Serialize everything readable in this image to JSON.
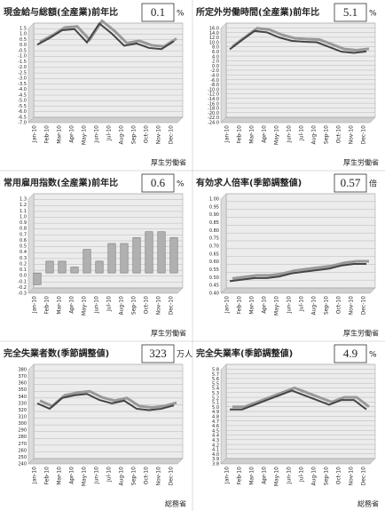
{
  "chart_data": [
    {
      "type": "line",
      "title": "現金給与総額(全産業)前年比",
      "headline": "0.1",
      "unit": "%",
      "source": "厚生労働省",
      "categories": [
        "Jan-10",
        "Feb-10",
        "Mar-10",
        "Apr-10",
        "May-10",
        "Jun-10",
        "Jul-10",
        "Aug-10",
        "Sep-10",
        "Oct-10",
        "Nov-10",
        "Dec-10"
      ],
      "values": [
        -0.2,
        0.4,
        1.1,
        1.2,
        0.0,
        1.7,
        0.8,
        -0.3,
        -0.1,
        -0.5,
        -0.6,
        0.1
      ],
      "color": "#444444",
      "ylim": [
        -7,
        1.5
      ],
      "yticks": [
        {
          "value": -7,
          "label": "-7.0"
        },
        -6.5,
        {
          "value": -6,
          "label": "-6.0"
        },
        -5.5,
        {
          "value": -5,
          "label": "-5.0"
        },
        -4.5,
        {
          "value": -4,
          "label": "-4.0"
        },
        -3.5,
        {
          "value": -3,
          "label": "-3.0"
        },
        -2.5,
        {
          "value": -2,
          "label": "-2.0"
        },
        -1.5,
        {
          "value": -1,
          "label": "-1.0"
        },
        -0.5,
        {
          "value": 0,
          "label": "0.0"
        },
        0.5,
        {
          "value": 1,
          "label": "1.0"
        },
        1.5
      ]
    },
    {
      "type": "line",
      "title": "所定外労働時間(全産業)前年比",
      "headline": "5.1",
      "unit": "%",
      "source": "厚生労働省",
      "categories": [
        "Jan-10",
        "Feb-10",
        "Mar-10",
        "Apr-10",
        "May-10",
        "Jun-10",
        "Jul-10",
        "Aug-10",
        "Sep-10",
        "Oct-10",
        "Nov-10",
        "Dec-10"
      ],
      "values": [
        6.0,
        10.0,
        13.8,
        13.2,
        11.0,
        9.6,
        9.2,
        9.0,
        7.0,
        5.0,
        4.5,
        5.1
      ],
      "color": "#444444",
      "ylim": [
        -24,
        16
      ],
      "yticks": [
        {
          "value": -24,
          "label": "-24.0"
        },
        {
          "value": -22,
          "label": "-22.0"
        },
        {
          "value": -20,
          "label": "-20.0"
        },
        {
          "value": -18,
          "label": "-18.0"
        },
        {
          "value": -16,
          "label": "-16.0"
        },
        {
          "value": -14,
          "label": "-14.0"
        },
        {
          "value": -12,
          "label": "-12.0"
        },
        {
          "value": -10,
          "label": "-10.0"
        },
        {
          "value": -8,
          "label": "-8.0"
        },
        {
          "value": -6,
          "label": "-6.0"
        },
        {
          "value": -4,
          "label": "-4.0"
        },
        {
          "value": -2,
          "label": "-2.0"
        },
        {
          "value": 0,
          "label": "0.0"
        },
        {
          "value": 2,
          "label": "2.0"
        },
        {
          "value": 4,
          "label": "4.0"
        },
        {
          "value": 6,
          "label": "6.0"
        },
        {
          "value": 8,
          "label": "8.0"
        },
        {
          "value": 10,
          "label": "10.0"
        },
        {
          "value": 12,
          "label": "12.0"
        },
        {
          "value": 14,
          "label": "14.0"
        },
        {
          "value": 16,
          "label": "16.0"
        }
      ]
    },
    {
      "type": "bar",
      "title": "常用雇用指数(全産業)前年比",
      "headline": "0.6",
      "unit": "%",
      "source": "厚生労働省",
      "categories": [
        "Jan-10",
        "Feb-10",
        "Mar-10",
        "Apr-10",
        "May-10",
        "Jun-10",
        "Jul-10",
        "Aug-10",
        "Sep-10",
        "Oct-10",
        "Nov-10",
        "Dec-10"
      ],
      "values": [
        -0.2,
        0.2,
        0.2,
        0.1,
        0.4,
        0.2,
        0.5,
        0.5,
        0.6,
        0.7,
        0.7,
        0.6
      ],
      "color": "#b0b0b0",
      "ylim": [
        -0.3,
        1.3
      ],
      "yticks": [
        -0.3,
        -0.2,
        -0.1,
        {
          "value": 0,
          "label": "0.0"
        },
        0.1,
        0.2,
        0.3,
        0.4,
        0.5,
        0.6,
        0.7,
        0.8,
        0.9,
        {
          "value": 1,
          "label": "1.0"
        },
        1.1,
        1.2,
        1.3
      ]
    },
    {
      "type": "line",
      "title": "有効求人倍率(季節調整値)",
      "headline": "0.57",
      "unit": "倍",
      "source": "厚生労働省",
      "categories": [
        "Jan-10",
        "Feb-10",
        "Mar-10",
        "Apr-10",
        "May-10",
        "Jun-10",
        "Jul-10",
        "Aug-10",
        "Sep-10",
        "Oct-10",
        "Nov-10",
        "Dec-10"
      ],
      "values": [
        0.46,
        0.47,
        0.48,
        0.48,
        0.49,
        0.51,
        0.52,
        0.53,
        0.54,
        0.56,
        0.57,
        0.57
      ],
      "color": "#444444",
      "ylim": [
        0.4,
        1.0
      ],
      "yticks": [
        {
          "value": 0.4,
          "label": "0.40"
        },
        0.45,
        {
          "value": 0.5,
          "label": "0.50"
        },
        0.55,
        {
          "value": 0.6,
          "label": "0.60"
        },
        0.65,
        {
          "value": 0.7,
          "label": "0.70"
        },
        0.75,
        {
          "value": 0.8,
          "label": "0.80"
        },
        0.85,
        {
          "value": 0.9,
          "label": "0.90"
        },
        0.95,
        {
          "value": 1,
          "label": "1.00"
        }
      ]
    },
    {
      "type": "line",
      "title": "完全失業者数(季節調整値)",
      "headline": "323",
      "unit": "万人",
      "source": "総務省",
      "categories": [
        "Jan-10",
        "Feb-10",
        "Mar-10",
        "Apr-10",
        "May-10",
        "Jun-10",
        "Jul-10",
        "Aug-10",
        "Sep-10",
        "Oct-10",
        "Nov-10",
        "Dec-10"
      ],
      "values": [
        326,
        318,
        334,
        338,
        340,
        331,
        326,
        330,
        318,
        316,
        318,
        323
      ],
      "color": "#444444",
      "ylim": [
        240,
        380
      ],
      "yticks": [
        240,
        250,
        260,
        270,
        280,
        290,
        300,
        310,
        320,
        330,
        340,
        350,
        360,
        370,
        380
      ]
    },
    {
      "type": "line",
      "title": "完全失業率(季節調整値)",
      "headline": "4.9",
      "unit": "%",
      "source": "総務省",
      "categories": [
        "Jan-10",
        "Feb-10",
        "Mar-10",
        "Apr-10",
        "May-10",
        "Jun-10",
        "Jul-10",
        "Aug-10",
        "Sep-10",
        "Oct-10",
        "Nov-10",
        "Dec-10"
      ],
      "values": [
        4.9,
        4.9,
        5.0,
        5.1,
        5.2,
        5.3,
        5.2,
        5.1,
        5.0,
        5.1,
        5.1,
        4.9
      ],
      "color": "#444444",
      "ylim": [
        3.8,
        5.8
      ],
      "yticks": [
        3.8,
        3.9,
        {
          "value": 4,
          "label": "4.0"
        },
        4.1,
        4.2,
        4.3,
        4.4,
        4.5,
        4.6,
        4.7,
        4.8,
        4.9,
        {
          "value": 5,
          "label": "5.0"
        },
        5.1,
        5.2,
        5.3,
        5.4,
        5.5,
        5.6,
        5.7,
        5.8
      ]
    }
  ]
}
